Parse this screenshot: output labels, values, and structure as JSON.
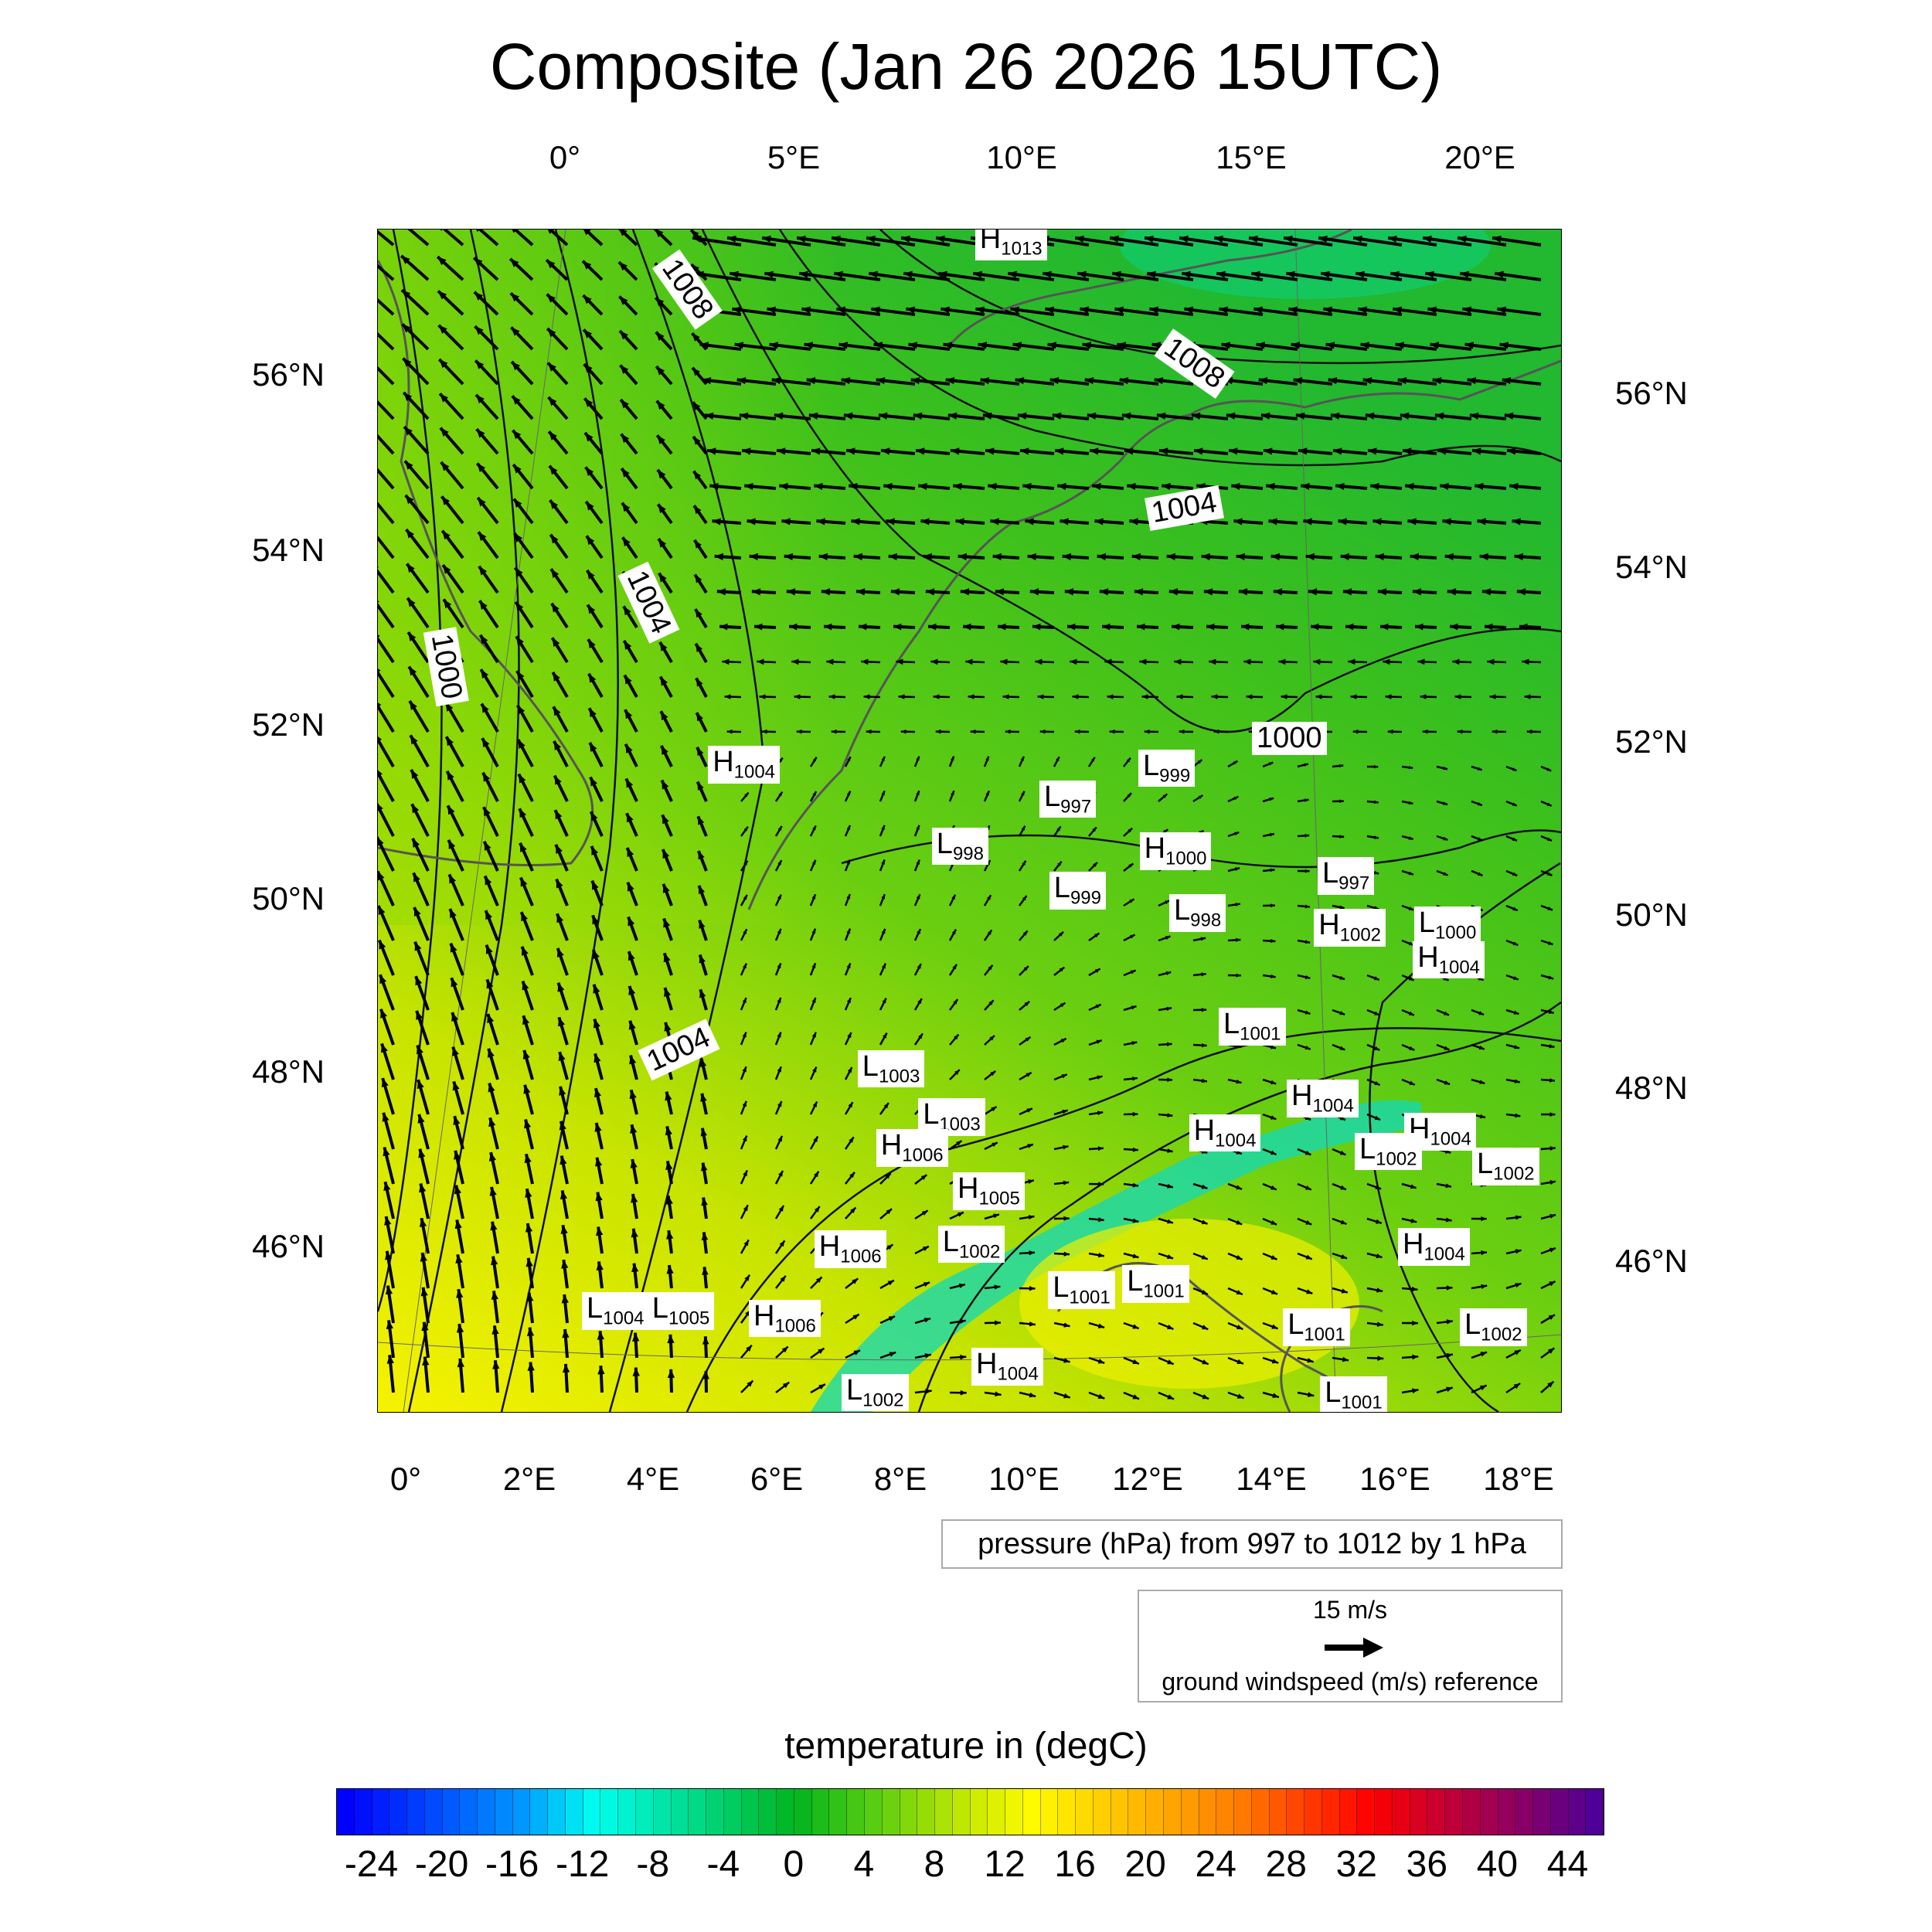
{
  "title": "Composite (Jan 26 2026 15UTC)",
  "axes": {
    "top_lon": [
      "0°",
      "5°E",
      "10°E",
      "15°E",
      "20°E"
    ],
    "bottom_lon": [
      "0°",
      "2°E",
      "4°E",
      "6°E",
      "8°E",
      "10°E",
      "12°E",
      "14°E",
      "16°E",
      "18°E"
    ],
    "left_lat": [
      "56°N",
      "54°N",
      "52°N",
      "50°N",
      "48°N",
      "46°N"
    ],
    "right_lat": [
      "56°N",
      "54°N",
      "52°N",
      "50°N",
      "48°N",
      "46°N"
    ]
  },
  "pressure_centers": [
    {
      "type": "H",
      "value": "1013"
    },
    {
      "type": "H",
      "value": "1004"
    },
    {
      "type": "L",
      "value": "997"
    },
    {
      "type": "L",
      "value": "999"
    },
    {
      "type": "L",
      "value": "998"
    },
    {
      "type": "H",
      "value": "1000"
    },
    {
      "type": "L",
      "value": "999"
    },
    {
      "type": "L",
      "value": "998"
    },
    {
      "type": "L",
      "value": "997"
    },
    {
      "type": "H",
      "value": "1002"
    },
    {
      "type": "L",
      "value": "1000"
    },
    {
      "type": "H",
      "value": "1004"
    },
    {
      "type": "L",
      "value": "1001"
    },
    {
      "type": "L",
      "value": "1003"
    },
    {
      "type": "L",
      "value": "1003"
    },
    {
      "type": "H",
      "value": "1006"
    },
    {
      "type": "H",
      "value": "1005"
    },
    {
      "type": "H",
      "value": "1004"
    },
    {
      "type": "H",
      "value": "1004"
    },
    {
      "type": "H",
      "value": "1004"
    },
    {
      "type": "L",
      "value": "1002"
    },
    {
      "type": "L",
      "value": "1002"
    },
    {
      "type": "H",
      "value": "1006"
    },
    {
      "type": "L",
      "value": "1002"
    },
    {
      "type": "L",
      "value": "1001"
    },
    {
      "type": "L",
      "value": "1001"
    },
    {
      "type": "H",
      "value": "1004"
    },
    {
      "type": "L",
      "value": "1004"
    },
    {
      "type": "L",
      "value": "1005"
    },
    {
      "type": "H",
      "value": "1006"
    },
    {
      "type": "L",
      "value": "1001"
    },
    {
      "type": "L",
      "value": "1002"
    },
    {
      "type": "H",
      "value": "1004"
    },
    {
      "type": "L",
      "value": "1002"
    },
    {
      "type": "L",
      "value": "1001"
    }
  ],
  "contour_labels": [
    "1008",
    "1008",
    "1004",
    "1004",
    "1000",
    "1000",
    "1004"
  ],
  "pressure_legend": "pressure (hPa) from 997 to 1012 by 1 hPa",
  "wind_legend": {
    "speed": "15 m/s",
    "label": "ground windspeed (m/s) reference"
  },
  "colorbar": {
    "title": "temperature in (degC)",
    "labels": [
      "-24",
      "-20",
      "-16",
      "-12",
      "-8",
      "-4",
      "0",
      "4",
      "8",
      "12",
      "16",
      "20",
      "24",
      "28",
      "32",
      "36",
      "40",
      "44"
    ],
    "min": -26,
    "max": 46,
    "step": 1
  },
  "colors": {
    "cold": "#0000ff",
    "zero": "#10b010",
    "warm": "#ffff00",
    "hot": "#ff0000",
    "max": "#500090"
  }
}
